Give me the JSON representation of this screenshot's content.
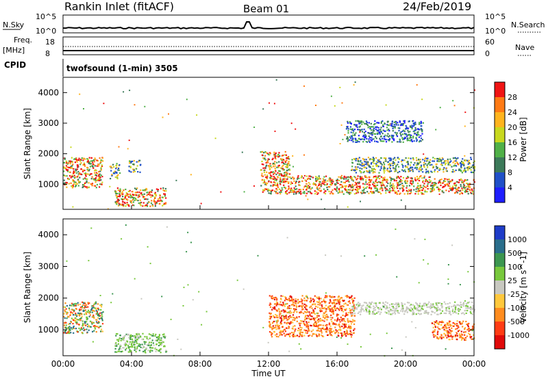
{
  "header": {
    "station": "Rankin Inlet (fitACF)",
    "beam": "Beam 01",
    "date": "24/Feb/2019"
  },
  "noise_panel": {
    "left_label": "N.Sky",
    "right_label": "N.Search",
    "left_ticks": [
      "10^5",
      "10^0"
    ],
    "right_ticks": [
      "10^5",
      "10^0"
    ]
  },
  "freq_panel": {
    "left_label_1": "Freq.",
    "left_label_2": "[MHz]",
    "left_ticks": [
      "18",
      "8"
    ],
    "right_ticks": [
      "60",
      "0"
    ],
    "right_label": "Nave",
    "cpid_label": "CPID",
    "program": "twofsound (1-min) 3505"
  },
  "x_axis": {
    "label": "Time UT",
    "ticks": [
      "00:00",
      "04:00",
      "08:00",
      "12:00",
      "16:00",
      "20:00",
      "00:00"
    ]
  },
  "power_panel": {
    "ylabel": "Slant Range [km]",
    "yticks": [
      "1000",
      "2000",
      "3000",
      "4000"
    ],
    "colorbar_label": "Power [dB]",
    "colorbar_ticks": [
      "4",
      "8",
      "12",
      "16",
      "20",
      "24",
      "28"
    ],
    "colors": [
      "#1e1eff",
      "#2050c8",
      "#3c7a5a",
      "#50b048",
      "#c8d81e",
      "#ffb41e",
      "#ff7a14",
      "#f01414"
    ]
  },
  "velocity_panel": {
    "ylabel": "Slant Range [km]",
    "yticks": [
      "1000",
      "2000",
      "3000",
      "4000"
    ],
    "colorbar_label": "Velocity [m s^-1]",
    "colorbar_ticks": [
      "1000",
      "500",
      "100",
      "25",
      "-25",
      "-100",
      "-500",
      "-1000"
    ],
    "colors": [
      "#1e3cc8",
      "#2a6e8c",
      "#3c9650",
      "#78c83c",
      "#c8c8c0",
      "#ffc83c",
      "#ff8c1e",
      "#ff3c14",
      "#e00a0a"
    ]
  },
  "chart_data": {
    "type": "heatmap",
    "x_range_hours": [
      0,
      24
    ],
    "y_range_km": [
      180,
      4500
    ],
    "grid": false,
    "power_regions": [
      {
        "t": [
          0,
          2.3
        ],
        "r": [
          900,
          1900
        ],
        "level": "high"
      },
      {
        "t": [
          2.7,
          3.3
        ],
        "r": [
          1200,
          1700
        ],
        "level": "mid"
      },
      {
        "t": [
          3.8,
          4.5
        ],
        "r": [
          1400,
          1800
        ],
        "level": "mid"
      },
      {
        "t": [
          3.0,
          6.0
        ],
        "r": [
          300,
          900
        ],
        "level": "high"
      },
      {
        "t": [
          11.5,
          13.2
        ],
        "r": [
          700,
          2100
        ],
        "level": "high"
      },
      {
        "t": [
          13.2,
          21.5
        ],
        "r": [
          700,
          1300
        ],
        "level": "high"
      },
      {
        "t": [
          16.8,
          24.0
        ],
        "r": [
          1400,
          1900
        ],
        "level": "mid"
      },
      {
        "t": [
          21.5,
          24.0
        ],
        "r": [
          700,
          1200
        ],
        "level": "high"
      },
      {
        "t": [
          16.5,
          21.0
        ],
        "r": [
          2400,
          3100
        ],
        "level": "low"
      }
    ],
    "velocity_regions": [
      {
        "t": [
          0,
          2.3
        ],
        "r": [
          900,
          1900
        ],
        "sign": "mixed"
      },
      {
        "t": [
          3.0,
          6.0
        ],
        "r": [
          300,
          900
        ],
        "sign": "positive"
      },
      {
        "t": [
          12.0,
          17.0
        ],
        "r": [
          800,
          2100
        ],
        "sign": "negative"
      },
      {
        "t": [
          16.8,
          24.0
        ],
        "r": [
          1500,
          1900
        ],
        "sign": "near-zero"
      },
      {
        "t": [
          21.5,
          24.0
        ],
        "r": [
          700,
          1300
        ],
        "sign": "negative"
      }
    ]
  }
}
